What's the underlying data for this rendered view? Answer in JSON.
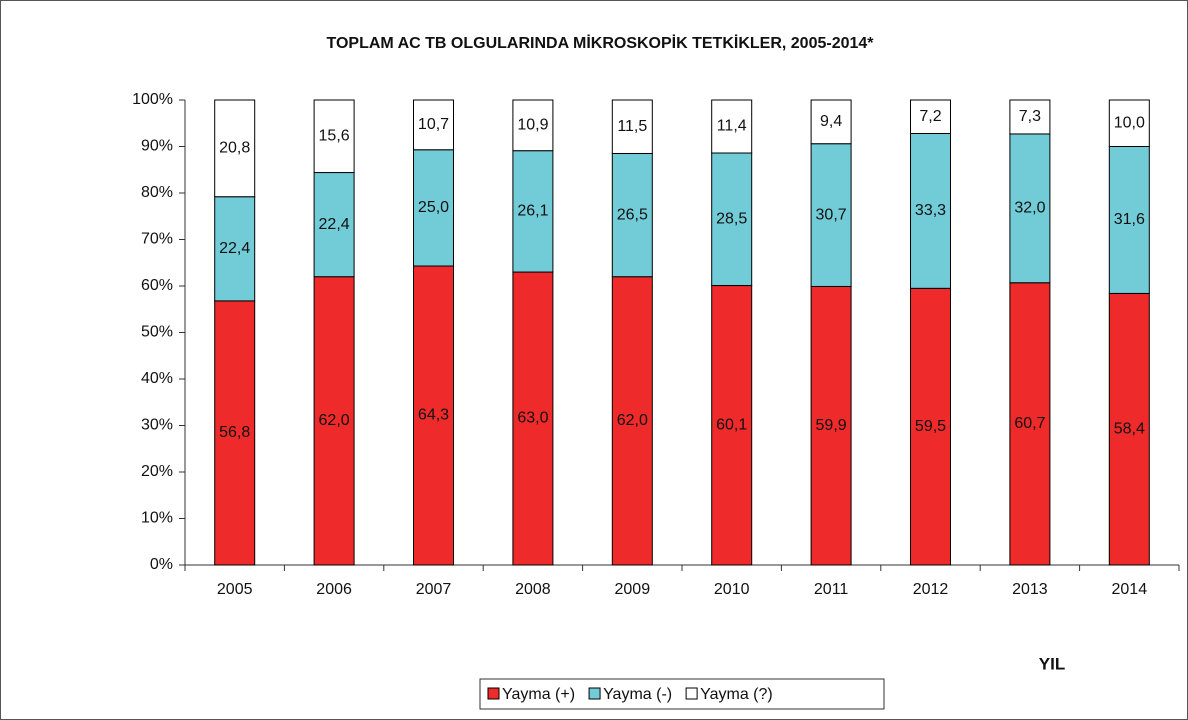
{
  "chart_data": {
    "type": "stacked_bar",
    "title": "TOPLAM AC TB OLGULARINDA  MİKROSKOPİK TETKİKLER, 2005-2014*",
    "x_label": "YIL",
    "categories": [
      "2005",
      "2006",
      "2007",
      "2008",
      "2009",
      "2010",
      "2011",
      "2012",
      "2013",
      "2014"
    ],
    "series": [
      {
        "name": "Yayma (+)",
        "color": "#ee2a2a",
        "values": [
          56.8,
          62.0,
          64.3,
          63.0,
          62.0,
          60.1,
          59.9,
          59.5,
          60.7,
          58.4
        ],
        "value_labels": [
          "56,8",
          "62,0",
          "64,3",
          "63,0",
          "62,0",
          "60,1",
          "59,9",
          "59,5",
          "60,7",
          "58,4"
        ]
      },
      {
        "name": "Yayma (-)",
        "color": "#72ccd8",
        "values": [
          22.4,
          22.4,
          25.0,
          26.1,
          26.5,
          28.5,
          30.7,
          33.3,
          32.0,
          31.6
        ],
        "value_labels": [
          "22,4",
          "22,4",
          "25,0",
          "26,1",
          "26,5",
          "28,5",
          "30,7",
          "33,3",
          "32,0",
          "31,6"
        ]
      },
      {
        "name": "Yayma (?)",
        "color": "#ffffff",
        "values": [
          20.8,
          15.6,
          10.7,
          10.9,
          11.5,
          11.4,
          9.4,
          7.2,
          7.3,
          10.0
        ],
        "value_labels": [
          "20,8",
          "15,6",
          "10,7",
          "10,9",
          "11,5",
          "11,4",
          "9,4",
          "7,2",
          "7,3",
          "10,0"
        ]
      }
    ],
    "ylim": [
      0,
      100
    ],
    "yticks": [
      {
        "value": 0,
        "label": "0%"
      },
      {
        "value": 10,
        "label": "10%"
      },
      {
        "value": 20,
        "label": "20%"
      },
      {
        "value": 30,
        "label": "30%"
      },
      {
        "value": 40,
        "label": "40%"
      },
      {
        "value": 50,
        "label": "50%"
      },
      {
        "value": 60,
        "label": "60%"
      },
      {
        "value": 70,
        "label": "70%"
      },
      {
        "value": 80,
        "label": "80%"
      },
      {
        "value": 90,
        "label": "90%"
      },
      {
        "value": 100,
        "label": "100%"
      }
    ],
    "legend": "bottom"
  }
}
